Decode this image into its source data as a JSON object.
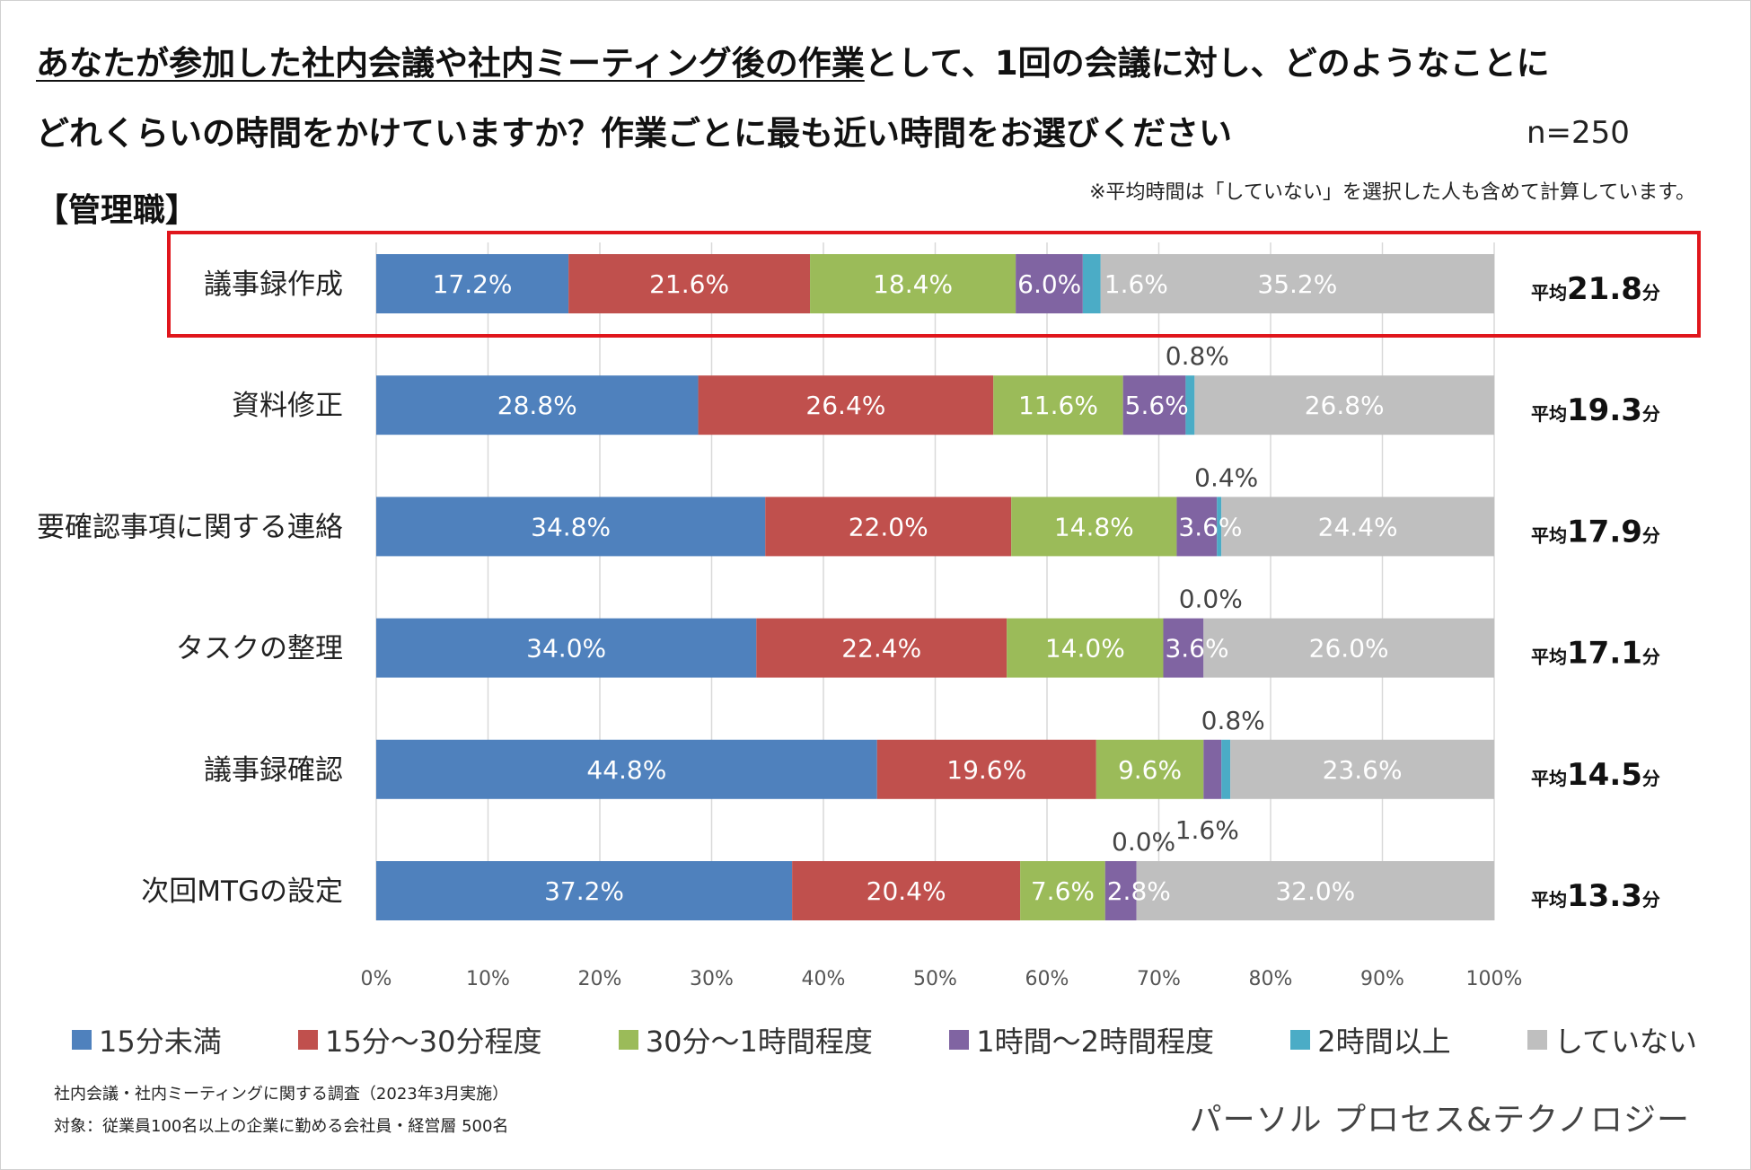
{
  "title": {
    "line1_underlined": "あなたが参加した社内会議や社内ミーティング後の作業",
    "line1_rest": "として、1回の会議に対し、どのようなことに",
    "line2": "どれくらいの時間をかけていますか？作業ごとに最も近い時間をお選びください"
  },
  "n_label": "n=250",
  "note": "※平均時間は「していない」を選択した人も含めて計算しています。",
  "segment_label": "【管理職】",
  "footer": {
    "source1": "社内会議・社内ミーティングに関する調査（2023年3月実施）",
    "source2": "対象：従業員100名以上の企業に勤める会社員・経営層 500名",
    "brand": "パーソル プロセス&テクノロジー"
  },
  "colors": {
    "s1": "#4f81bd",
    "s2": "#c0504d",
    "s3": "#9bbb59",
    "s4": "#8064a2",
    "s5": "#4bacc6",
    "s6": "#bfbfbf",
    "highlight": "#e0161c",
    "grid": "#d9d9d9"
  },
  "chart_data": {
    "type": "bar",
    "orientation": "horizontal-stacked-100",
    "xlabel": "",
    "ylabel": "",
    "xlim": [
      0,
      100
    ],
    "xticks": [
      "0%",
      "10%",
      "20%",
      "30%",
      "40%",
      "50%",
      "60%",
      "70%",
      "80%",
      "90%",
      "100%"
    ],
    "grid": true,
    "legend_position": "bottom",
    "categories": [
      "議事録作成",
      "資料修正",
      "要確認事項に関する連絡",
      "タスクの整理",
      "議事録確認",
      "次回MTGの設定"
    ],
    "series": [
      {
        "name": "15分未満",
        "values": [
          17.2,
          28.8,
          34.8,
          34.0,
          44.8,
          37.2
        ]
      },
      {
        "name": "15分～30分程度",
        "values": [
          21.6,
          26.4,
          22.0,
          22.4,
          19.6,
          20.4
        ]
      },
      {
        "name": "30分～1時間程度",
        "values": [
          18.4,
          11.6,
          14.8,
          14.0,
          9.6,
          7.6
        ]
      },
      {
        "name": "1時間～2時間程度",
        "values": [
          6.0,
          5.6,
          3.6,
          3.6,
          1.6,
          2.8
        ]
      },
      {
        "name": "2時間以上",
        "values": [
          1.6,
          0.8,
          0.4,
          0.0,
          0.8,
          0.0
        ]
      },
      {
        "name": "していない",
        "values": [
          35.2,
          26.8,
          24.4,
          26.0,
          23.6,
          32.0
        ]
      }
    ],
    "averages": [
      {
        "prefix": "平均",
        "value": "21.8",
        "unit": "分"
      },
      {
        "prefix": "平均",
        "value": "19.3",
        "unit": "分"
      },
      {
        "prefix": "平均",
        "value": "17.9",
        "unit": "分"
      },
      {
        "prefix": "平均",
        "value": "17.1",
        "unit": "分"
      },
      {
        "prefix": "平均",
        "value": "14.5",
        "unit": "分"
      },
      {
        "prefix": "平均",
        "value": "13.3",
        "unit": "分"
      }
    ],
    "highlighted_category": "議事録作成"
  }
}
